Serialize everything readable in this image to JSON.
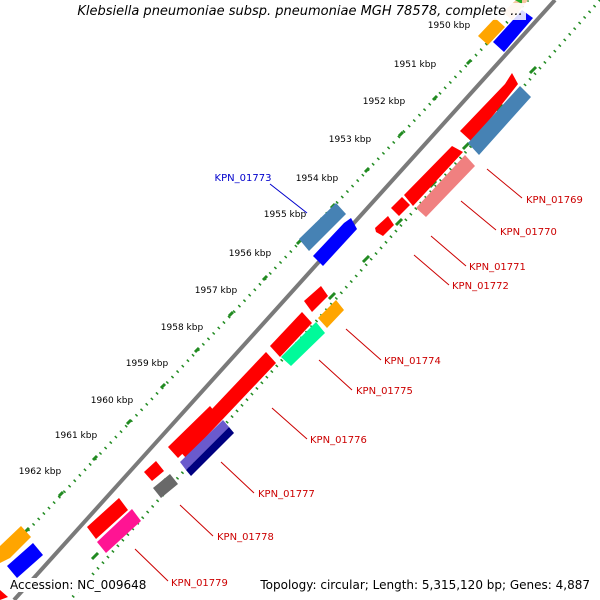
{
  "title": "Klebsiella pneumoniae subsp. pneumoniae MGH 78578, complete ...",
  "accession_text": "Accession: NC_009648",
  "summary_text": "Topology: circular; Length: 5,315,120 bp; Genes: 4,887",
  "colors": {
    "backbone": "#808080",
    "tick_dots": "#228B22",
    "cds_red": "#ff0000",
    "cds_blue": "#0000ff",
    "cds_steelblue": "#4682b4",
    "cds_salmon": "#f08080",
    "cds_orange": "#ffa500",
    "cds_springgreen": "#00fa9a",
    "cds_slateblue": "#6a5acd",
    "cds_navy": "#000080",
    "cds_gray": "#696969",
    "cds_pink": "#ff1493",
    "label_forward": "#0000cc",
    "label_reverse": "#cc0000"
  },
  "tick_labels": [
    "1950 kbp",
    "1951 kbp",
    "1952 kbp",
    "1953 kbp",
    "1954 kbp",
    "1955 kbp",
    "1956 kbp",
    "1957 kbp",
    "1958 kbp",
    "1959 kbp",
    "1960 kbp",
    "1961 kbp",
    "1962 kbp"
  ],
  "gene_labels": [
    {
      "text": "KPN_01773",
      "strand": "forward"
    },
    {
      "text": "KPN_01769",
      "strand": "reverse"
    },
    {
      "text": "KPN_01770",
      "strand": "reverse"
    },
    {
      "text": "KPN_01771",
      "strand": "reverse"
    },
    {
      "text": "KPN_01772",
      "strand": "reverse"
    },
    {
      "text": "KPN_01774",
      "strand": "reverse"
    },
    {
      "text": "KPN_01775",
      "strand": "reverse"
    },
    {
      "text": "KPN_01776",
      "strand": "reverse"
    },
    {
      "text": "KPN_01777",
      "strand": "reverse"
    },
    {
      "text": "KPN_01778",
      "strand": "reverse"
    },
    {
      "text": "KPN_01779",
      "strand": "reverse"
    }
  ]
}
